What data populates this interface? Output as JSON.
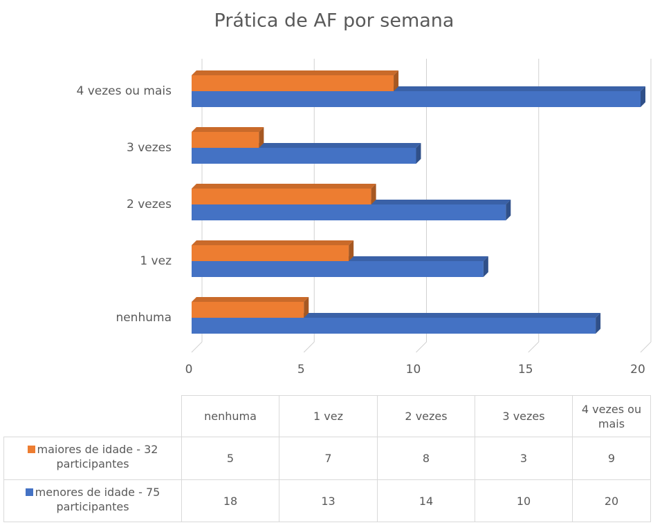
{
  "chart_data": {
    "type": "bar3d_horizontal",
    "title": "Prática de AF por semana",
    "categories": [
      "nenhuma",
      "1 vez",
      "2 vezes",
      "3 vezes",
      "4 vezes ou mais"
    ],
    "series": [
      {
        "name": "maiores de idade - 32 participantes",
        "color": "#ed7d31",
        "values": [
          5,
          7,
          8,
          3,
          9
        ]
      },
      {
        "name": "menores de idade - 75 participantes",
        "color": "#4472c4",
        "values": [
          18,
          13,
          14,
          10,
          20
        ]
      }
    ],
    "xlim": [
      0,
      20
    ],
    "xticks": [
      0,
      5,
      10,
      15,
      20
    ],
    "grid": true,
    "data_table": true
  }
}
